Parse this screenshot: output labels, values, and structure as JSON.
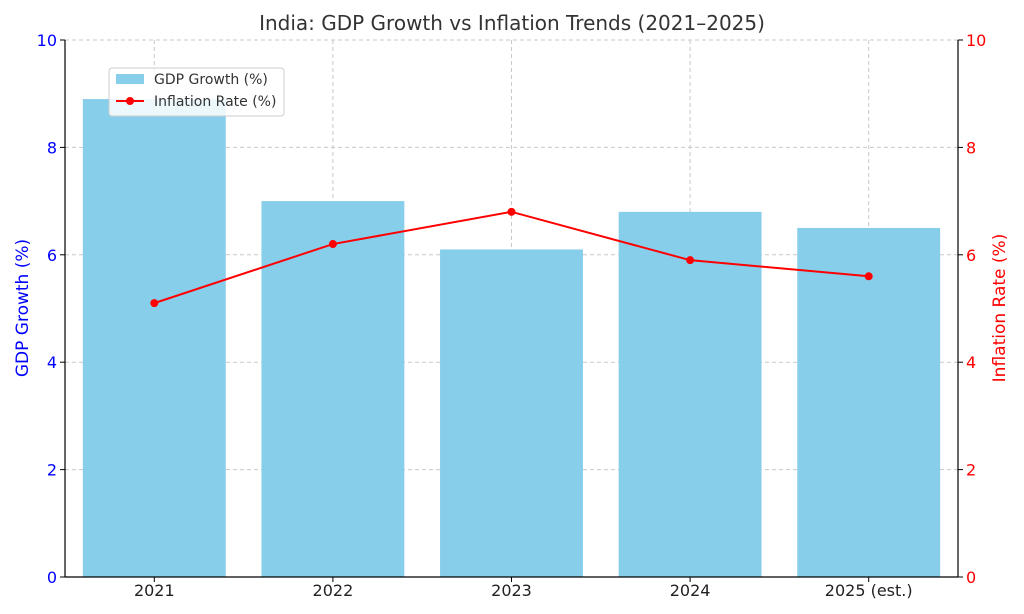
{
  "chart_data": {
    "type": "bar+line",
    "title": "India: GDP Growth vs Inflation Trends (2021–2025)",
    "categories": [
      "2021",
      "2022",
      "2023",
      "2024",
      "2025 (est.)"
    ],
    "series": [
      {
        "name": "GDP Growth (%)",
        "type": "bar",
        "axis": "left",
        "values": [
          8.9,
          7.0,
          6.1,
          6.8,
          6.5
        ]
      },
      {
        "name": "Inflation Rate (%)",
        "type": "line",
        "axis": "right",
        "values": [
          5.1,
          6.2,
          6.8,
          5.9,
          5.6
        ]
      }
    ],
    "ylabel_left": "GDP Growth (%)",
    "ylabel_right": "Inflation Rate (%)",
    "ylim_left": [
      0,
      10
    ],
    "ylim_right": [
      0,
      10
    ],
    "yticks": [
      "0",
      "2",
      "4",
      "6",
      "8",
      "10"
    ],
    "grid": true,
    "legend_position": "upper-left",
    "colors": {
      "bar": "#87ceeb",
      "line": "#ff0000",
      "left_axis": "#0000ff",
      "right_axis": "#ff0000",
      "grid": "#c8c8c8"
    }
  }
}
